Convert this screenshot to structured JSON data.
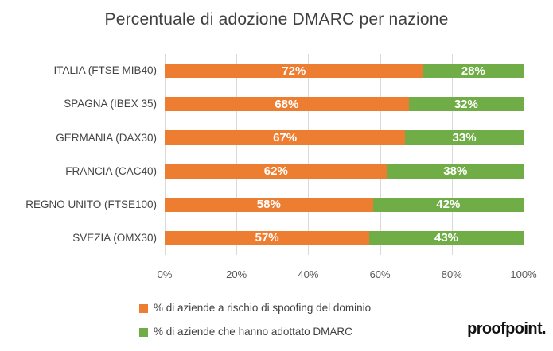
{
  "title": "Percentuale di adozione DMARC per nazione",
  "branding": {
    "logo_text": "proofpoint."
  },
  "chart_data": {
    "type": "bar",
    "orientation": "horizontal",
    "stacked": true,
    "title": "Percentuale di adozione DMARC per nazione",
    "categories": [
      "ITALIA (FTSE MIB40)",
      "SPAGNA (IBEX 35)",
      "GERMANIA (DAX30)",
      "FRANCIA (CAC40)",
      "REGNO UNITO (FTSE100)",
      "SVEZIA (OMX30)"
    ],
    "series": [
      {
        "name": "% di aziende a rischio di spoofing del dominio",
        "color": "#ED7D31",
        "values": [
          72,
          68,
          67,
          62,
          58,
          57
        ]
      },
      {
        "name": "% di aziende che hanno adottato DMARC",
        "color": "#70AD47",
        "values": [
          28,
          32,
          33,
          38,
          42,
          43
        ]
      }
    ],
    "data_label_suffix": "%",
    "x_axis": {
      "range": [
        0,
        100
      ],
      "ticks": [
        "0%",
        "20%",
        "40%",
        "60%",
        "80%",
        "100%"
      ]
    },
    "grid": true,
    "gridline_color": "#D9D9D9",
    "legend_position": "bottom-left"
  }
}
